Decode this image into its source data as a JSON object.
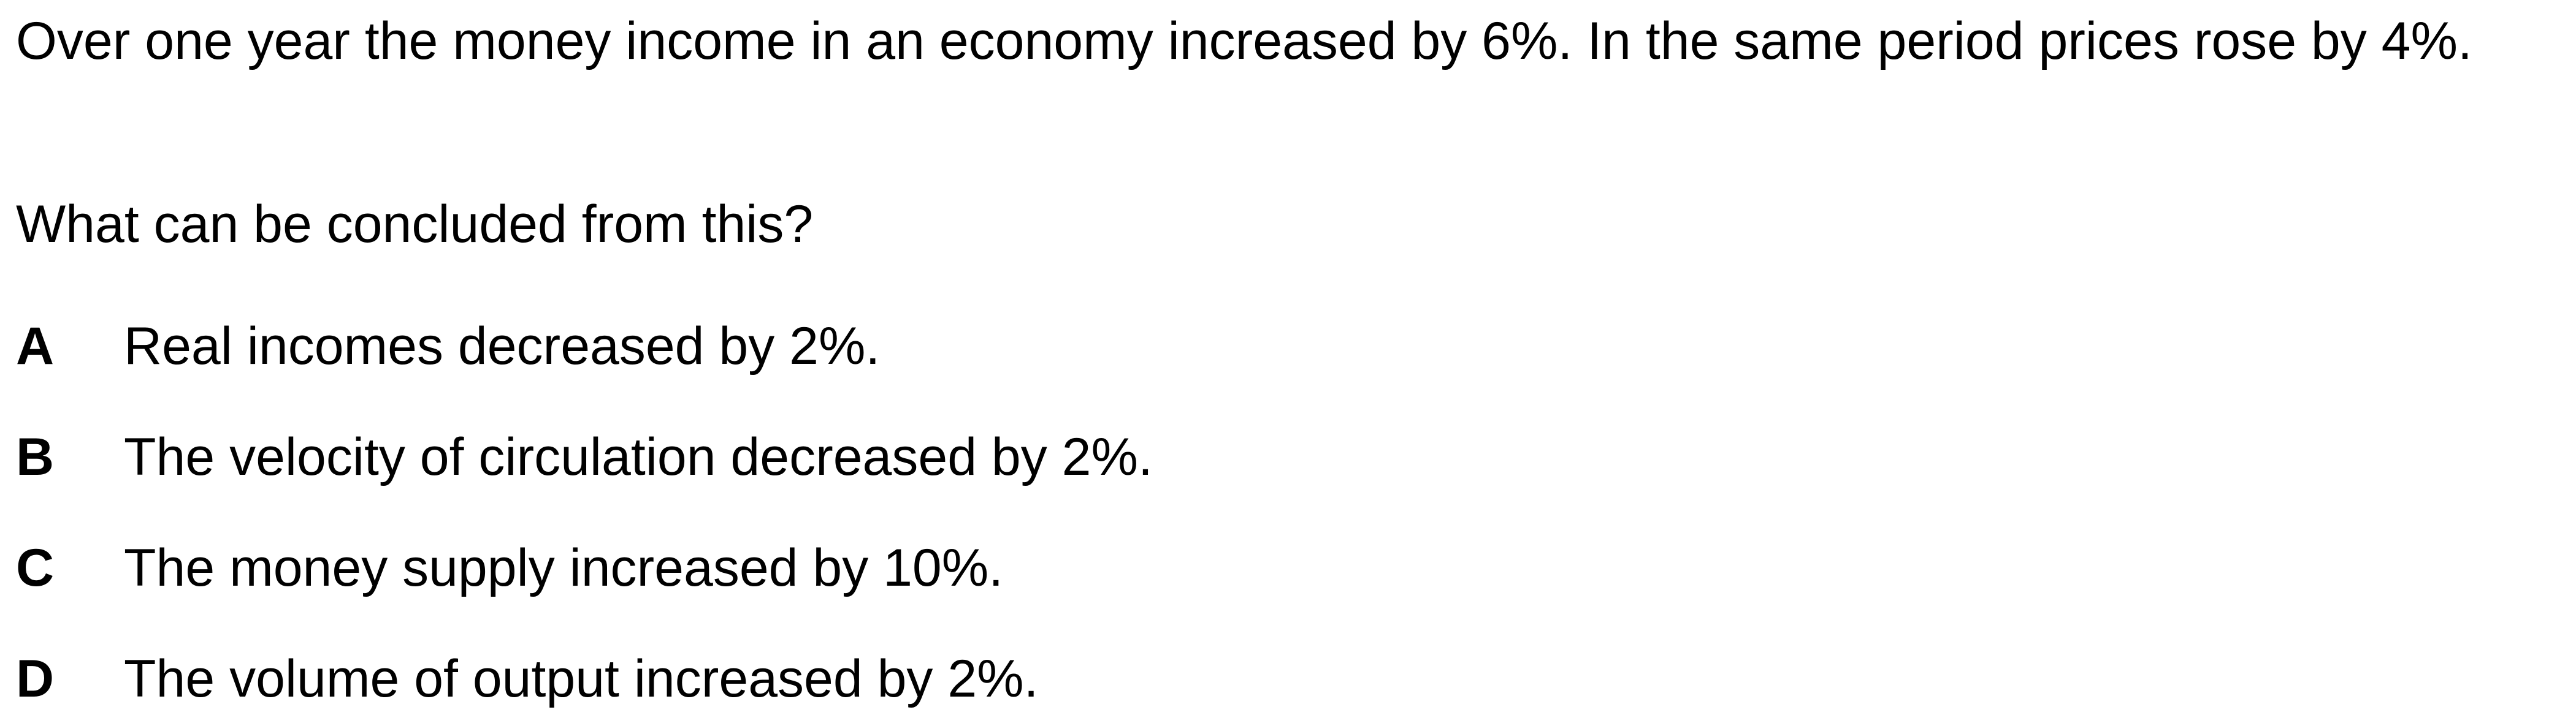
{
  "question": {
    "stem": "Over one year the money income in an economy increased by 6%. In the same period prices rose by 4%.",
    "prompt": "What can be concluded from this?",
    "options": [
      {
        "letter": "A",
        "text": "Real incomes decreased by 2%."
      },
      {
        "letter": "B",
        "text": "The velocity of circulation decreased by 2%."
      },
      {
        "letter": "C",
        "text": "The money supply increased by 10%."
      },
      {
        "letter": "D",
        "text": "The volume of output increased by 2%."
      }
    ]
  }
}
